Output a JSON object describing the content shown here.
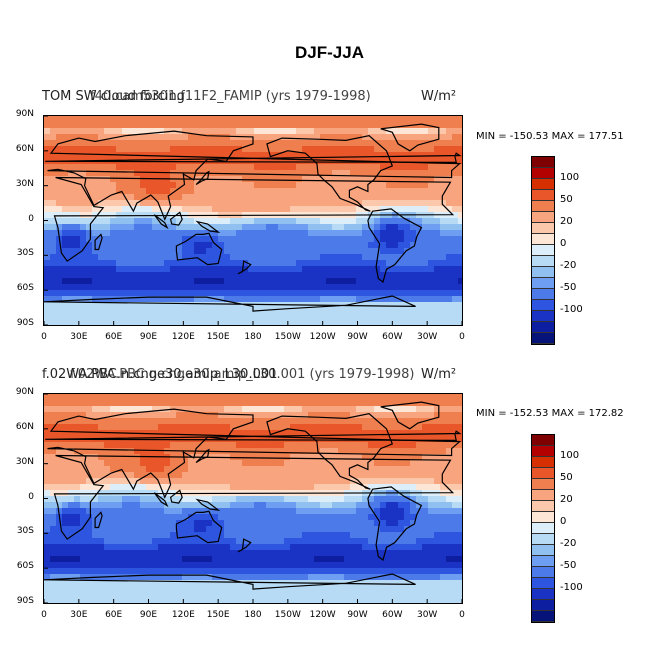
{
  "title": "DJF-JJA",
  "panels": [
    {
      "title_left": "TOM SW cloud forcing",
      "title_center": "f40.cam5301.f11F2_FAMIP (yrs 1979-1998)",
      "title_units": "W/m²",
      "min_label": "MIN = -150.53",
      "max_label": "MAX = 177.51"
    },
    {
      "title_left": "f.02WA.PBC.n.cnge30.amip_L30.001",
      "title_center": "f.02WA.PBC.n.cnge30.amip_L30.001 (yrs 1979-1998)",
      "title_units": "W/m²",
      "min_label": "MIN = -152.53",
      "max_label": "MAX = 172.82"
    }
  ],
  "lat_labels": [
    "90N",
    "60N",
    "30N",
    "0",
    "30S",
    "60S",
    "90S"
  ],
  "lon_labels": [
    "0",
    "30E",
    "60E",
    "90E",
    "120E",
    "150E",
    "180",
    "150W",
    "120W",
    "90W",
    "60W",
    "30W",
    "0"
  ],
  "colorbar_labels": [
    "100",
    "50",
    "20",
    "0",
    "-20",
    "-50",
    "-100"
  ],
  "colorbar_colors": [
    "#7f0000",
    "#b30000",
    "#d62f00",
    "#e8562a",
    "#f07f50",
    "#f8a47f",
    "#fcc8ac",
    "#fde6d6",
    "#dceefa",
    "#b8dbf5",
    "#8fc0f0",
    "#6e9ef2",
    "#4c7ae8",
    "#2e55e0",
    "#1a33c4",
    "#0d1fa0",
    "#06147a"
  ]
}
